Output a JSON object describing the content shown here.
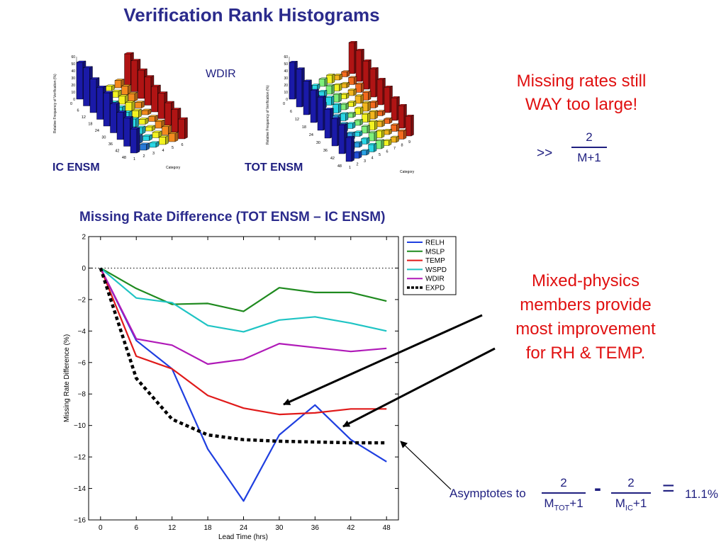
{
  "slide": {
    "title": "Verification Rank Histograms",
    "ic_label": "IC ENSM",
    "tot_label": "TOT ENSM",
    "wdir_label": "WDIR",
    "note_missing_line1": "Missing rates still",
    "note_missing_line2": "WAY too large!",
    "gtgt": ">>",
    "frac_top_num": "2",
    "frac_top_den": "M+1",
    "note_mixed_line1": "Mixed-physics",
    "note_mixed_line2": "members provide",
    "note_mixed_line3": "most improvement",
    "note_mixed_line4": "for RH & TEMP.",
    "asym_label": "Asymptotes to",
    "asym_num1": "2",
    "asym_den1_base": "M",
    "asym_den1_sub": "TOT",
    "asym_den1_tail": "+1",
    "asym_minus": "-",
    "asym_num2": "2",
    "asym_den2_base": "M",
    "asym_den2_sub": "IC",
    "asym_den2_tail": "+1",
    "asym_equals": "=",
    "asym_value": "11.1%"
  },
  "histograms": {
    "ylabel": "Relative Frequency of Verification (%)",
    "xlabel": "Category",
    "ic": {
      "yticks": [
        "0",
        "10",
        "20",
        "30",
        "40",
        "50",
        "60"
      ],
      "lead_ticks": [
        "0",
        "6",
        "12",
        "18",
        "24",
        "30",
        "36",
        "42",
        "48"
      ],
      "cat_ticks": [
        "1",
        "2",
        "3",
        "4",
        "5",
        "6"
      ],
      "colors": [
        "#1a1aa8",
        "#2a7ad8",
        "#29d6e6",
        "#f3f321",
        "#f38a1e",
        "#b01414"
      ]
    },
    "tot": {
      "yticks": [
        "0",
        "10",
        "20",
        "30",
        "40",
        "50",
        "60"
      ],
      "lead_ticks": [
        "0",
        "6",
        "12",
        "18",
        "24",
        "30",
        "36",
        "42",
        "48"
      ],
      "cat_ticks": [
        "1",
        "2",
        "3",
        "4",
        "5",
        "6",
        "7",
        "8",
        "9"
      ],
      "colors": [
        "#1a1aa8",
        "#2050d8",
        "#2aa2e6",
        "#29d6e6",
        "#7ef07a",
        "#f3f321",
        "#f3b51e",
        "#f36a1e",
        "#b01414"
      ]
    }
  },
  "chart_data": {
    "type": "line",
    "title": "Missing Rate Difference (TOT ENSM – IC ENSM)",
    "xlabel": "Lead Time (hrs)",
    "ylabel": "Missing Rate Difference (%)",
    "x": [
      0,
      6,
      12,
      18,
      24,
      30,
      36,
      42,
      48
    ],
    "xlim": [
      -2,
      50
    ],
    "ylim": [
      -16,
      2
    ],
    "xticks": [
      0,
      6,
      12,
      18,
      24,
      30,
      36,
      42,
      48
    ],
    "yticks": [
      2,
      0,
      -2,
      -4,
      -6,
      -8,
      -10,
      -12,
      -14,
      -16
    ],
    "zero_line": "dotted",
    "legend_position": "top-right",
    "series": [
      {
        "name": "RELH",
        "color": "#1f3fe0",
        "style": "solid",
        "values": [
          0,
          -4.6,
          -6.4,
          -11.5,
          -14.8,
          -10.6,
          -8.7,
          -10.9,
          -12.3
        ]
      },
      {
        "name": "MSLP",
        "color": "#1f8a1f",
        "style": "solid",
        "values": [
          0,
          -1.3,
          -2.3,
          -2.25,
          -2.75,
          -1.25,
          -1.55,
          -1.55,
          -2.1
        ]
      },
      {
        "name": "TEMP",
        "color": "#e01a1a",
        "style": "solid",
        "values": [
          0,
          -5.6,
          -6.4,
          -8.1,
          -8.9,
          -9.3,
          -9.2,
          -8.95,
          -8.95
        ]
      },
      {
        "name": "WSPD",
        "color": "#1fc4c4",
        "style": "solid",
        "values": [
          0,
          -1.9,
          -2.2,
          -3.65,
          -4.05,
          -3.3,
          -3.1,
          -3.5,
          -4.0
        ]
      },
      {
        "name": "WDIR",
        "color": "#b01ab8",
        "style": "solid",
        "values": [
          0,
          -4.5,
          -4.9,
          -6.1,
          -5.8,
          -4.8,
          -5.05,
          -5.3,
          -5.1
        ]
      },
      {
        "name": "EXPD",
        "color": "#000000",
        "style": "dashed",
        "values": [
          0,
          -7.0,
          -9.6,
          -10.6,
          -10.9,
          -11.0,
          -11.05,
          -11.1,
          -11.1
        ]
      }
    ]
  }
}
